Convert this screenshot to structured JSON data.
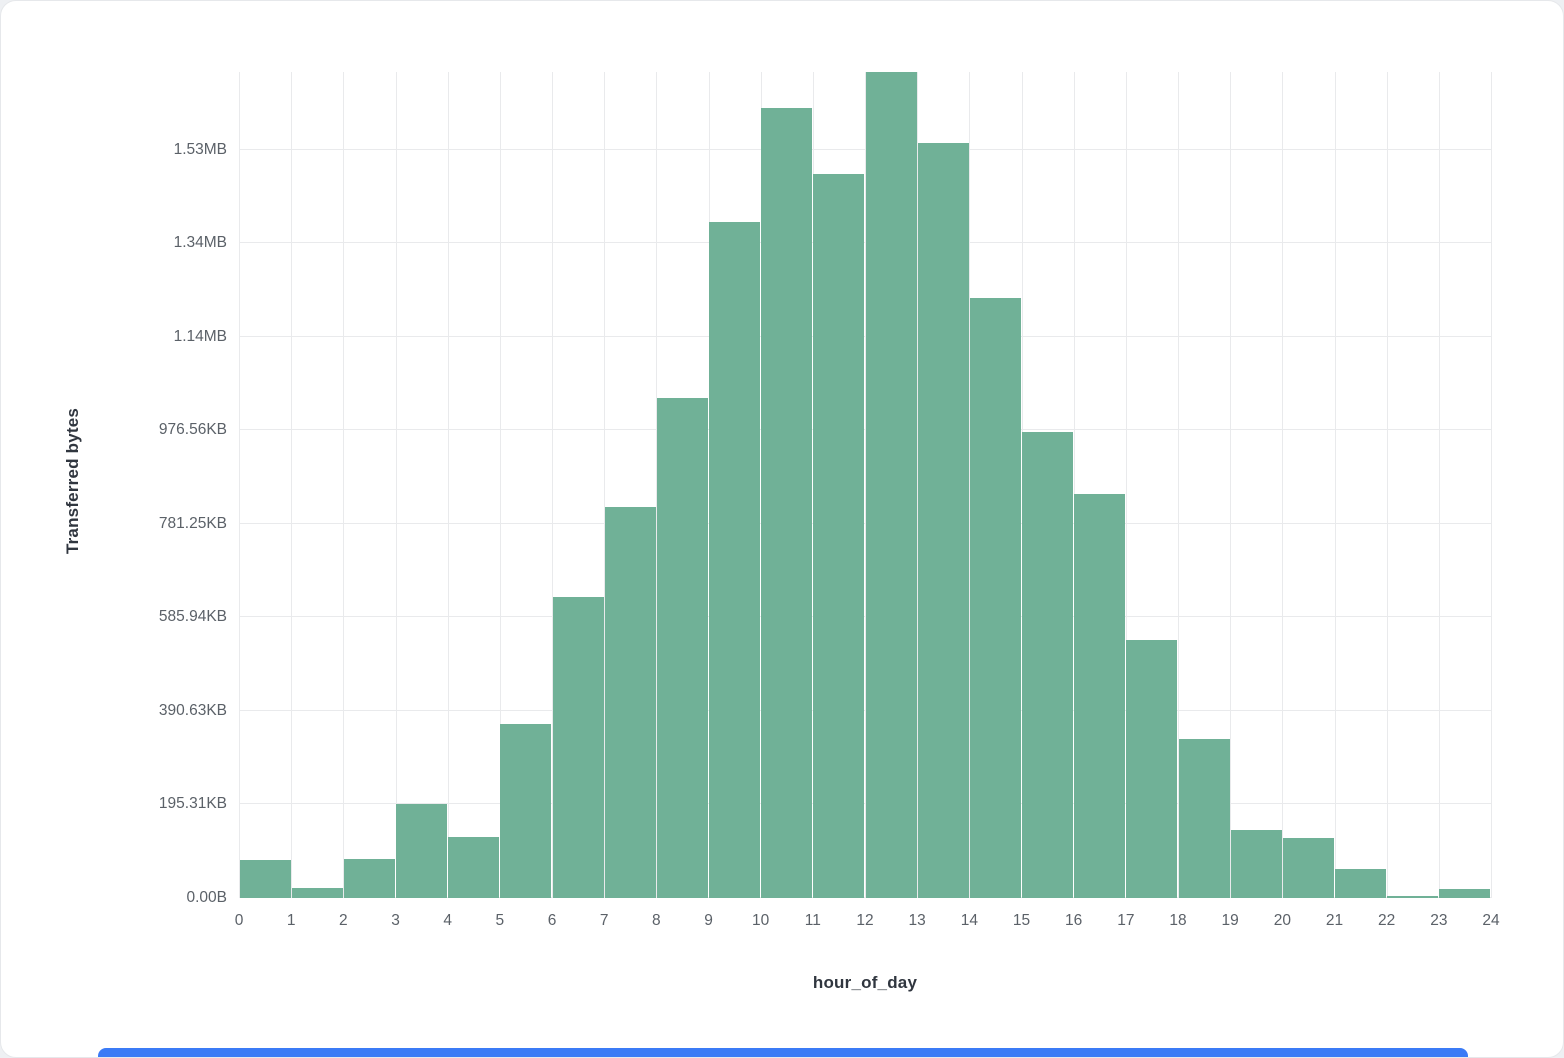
{
  "page": {
    "background_color": "#eef0f3",
    "card_color": "#ffffff",
    "bottom_accent_color": "#3b7bf6"
  },
  "chart_data": {
    "type": "bar",
    "title": "",
    "xlabel": "hour_of_day",
    "ylabel": "Transferred bytes",
    "categories": [
      0,
      1,
      2,
      3,
      4,
      5,
      6,
      7,
      8,
      9,
      10,
      11,
      12,
      13,
      14,
      15,
      16,
      17,
      18,
      19,
      20,
      21,
      22,
      23
    ],
    "values_bytes": [
      81000,
      21000,
      83000,
      200000,
      130000,
      372000,
      644000,
      836000,
      1069000,
      1446000,
      1690000,
      1549000,
      1765000,
      1615000,
      1283000,
      997000,
      864000,
      552000,
      340000,
      145000,
      128000,
      62000,
      4000,
      19000
    ],
    "x_tick_labels": [
      "0",
      "1",
      "2",
      "3",
      "4",
      "5",
      "6",
      "7",
      "8",
      "9",
      "10",
      "11",
      "12",
      "13",
      "14",
      "15",
      "16",
      "17",
      "18",
      "19",
      "20",
      "21",
      "22",
      "23",
      "24"
    ],
    "y_ticks": [
      {
        "label": "0.00B",
        "bytes": 0
      },
      {
        "label": "195.31KB",
        "bytes": 200000
      },
      {
        "label": "390.63KB",
        "bytes": 400000
      },
      {
        "label": "585.94KB",
        "bytes": 600000
      },
      {
        "label": "781.25KB",
        "bytes": 800000
      },
      {
        "label": "976.56KB",
        "bytes": 1000000
      },
      {
        "label": "1.14MB",
        "bytes": 1200000
      },
      {
        "label": "1.34MB",
        "bytes": 1400000
      },
      {
        "label": "1.53MB",
        "bytes": 1600000
      }
    ],
    "y_max_bytes": 1766000,
    "ylim": [
      0,
      1766000
    ],
    "grid": true,
    "legend": false,
    "bar_color": "#70b197",
    "grid_color": "#e9eaec",
    "axis_text_color": "#5b6168",
    "axis_title_color": "#30363f"
  }
}
